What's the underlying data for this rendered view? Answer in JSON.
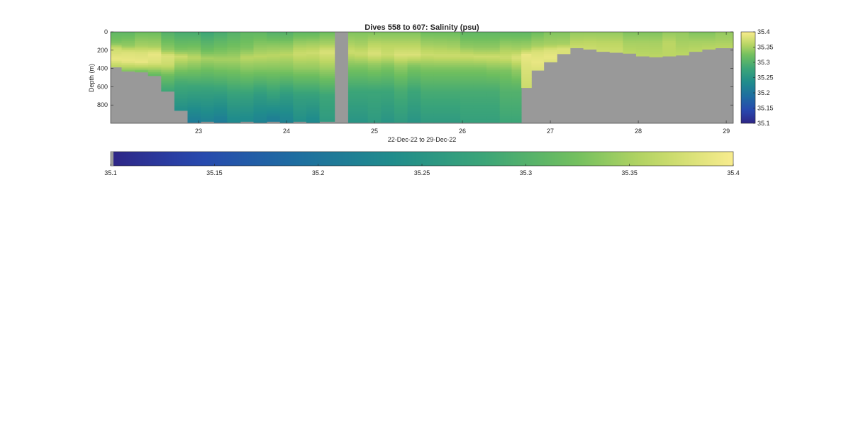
{
  "chart_data": {
    "type": "heatmap",
    "title": "Dives 558 to 607: Salinity (psu)",
    "xlabel": "22-Dec-22 to 29-Dec-22",
    "ylabel": "Depth (m)",
    "xlim": [
      22.0,
      29.08
    ],
    "ylim": [
      0,
      1000
    ],
    "y_reversed": true,
    "xticks": [
      23,
      24,
      25,
      26,
      27,
      28,
      29
    ],
    "yticks": [
      0,
      200,
      400,
      600,
      800
    ],
    "clim": [
      35.1,
      35.4
    ],
    "colormap": "parula",
    "colorbar_ticks": [
      35.1,
      35.15,
      35.2,
      35.25,
      35.3,
      35.35,
      35.4
    ],
    "nodata_color": "#999999",
    "gap_x": [
      24.55,
      24.7
    ],
    "columns": [
      {
        "x": 22.05,
        "bottom": 385,
        "profile": [
          [
            0,
            35.31
          ],
          [
            120,
            35.33
          ],
          [
            180,
            35.37
          ],
          [
            300,
            35.39
          ],
          [
            380,
            35.36
          ]
        ]
      },
      {
        "x": 22.2,
        "bottom": 430,
        "profile": [
          [
            0,
            35.31
          ],
          [
            150,
            35.34
          ],
          [
            220,
            35.38
          ],
          [
            320,
            35.39
          ],
          [
            400,
            35.35
          ],
          [
            430,
            35.33
          ]
        ]
      },
      {
        "x": 22.35,
        "bottom": 440,
        "profile": [
          [
            0,
            35.32
          ],
          [
            150,
            35.35
          ],
          [
            230,
            35.38
          ],
          [
            330,
            35.39
          ],
          [
            400,
            35.35
          ],
          [
            440,
            35.32
          ]
        ]
      },
      {
        "x": 22.5,
        "bottom": 480,
        "profile": [
          [
            0,
            35.32
          ],
          [
            160,
            35.35
          ],
          [
            240,
            35.39
          ],
          [
            340,
            35.38
          ],
          [
            420,
            35.34
          ],
          [
            480,
            35.31
          ]
        ]
      },
      {
        "x": 22.65,
        "bottom": 650,
        "profile": [
          [
            0,
            35.3
          ],
          [
            200,
            35.34
          ],
          [
            260,
            35.38
          ],
          [
            360,
            35.37
          ],
          [
            480,
            35.32
          ],
          [
            650,
            35.28
          ]
        ]
      },
      {
        "x": 22.8,
        "bottom": 860,
        "profile": [
          [
            0,
            35.29
          ],
          [
            200,
            35.33
          ],
          [
            270,
            35.37
          ],
          [
            380,
            35.34
          ],
          [
            550,
            35.29
          ],
          [
            860,
            35.24
          ]
        ]
      },
      {
        "x": 22.95,
        "bottom": 990,
        "profile": [
          [
            0,
            35.29
          ],
          [
            190,
            35.33
          ],
          [
            280,
            35.36
          ],
          [
            400,
            35.33
          ],
          [
            600,
            35.28
          ],
          [
            990,
            35.21
          ]
        ]
      },
      {
        "x": 23.1,
        "bottom": 980,
        "profile": [
          [
            0,
            35.28
          ],
          [
            200,
            35.32
          ],
          [
            290,
            35.35
          ],
          [
            420,
            35.32
          ],
          [
            650,
            35.27
          ],
          [
            980,
            35.22
          ]
        ]
      },
      {
        "x": 23.25,
        "bottom": 990,
        "profile": [
          [
            0,
            35.29
          ],
          [
            220,
            35.33
          ],
          [
            300,
            35.35
          ],
          [
            440,
            35.32
          ],
          [
            700,
            35.26
          ],
          [
            990,
            35.21
          ]
        ]
      },
      {
        "x": 23.4,
        "bottom": 990,
        "profile": [
          [
            0,
            35.3
          ],
          [
            200,
            35.33
          ],
          [
            300,
            35.35
          ],
          [
            450,
            35.32
          ],
          [
            700,
            35.27
          ],
          [
            990,
            35.23
          ]
        ]
      },
      {
        "x": 23.55,
        "bottom": 980,
        "profile": [
          [
            0,
            35.31
          ],
          [
            180,
            35.33
          ],
          [
            280,
            35.36
          ],
          [
            430,
            35.33
          ],
          [
            700,
            35.27
          ],
          [
            980,
            35.23
          ]
        ]
      },
      {
        "x": 23.7,
        "bottom": 990,
        "profile": [
          [
            0,
            35.31
          ],
          [
            170,
            35.34
          ],
          [
            270,
            35.36
          ],
          [
            420,
            35.33
          ],
          [
            700,
            35.26
          ],
          [
            990,
            35.22
          ]
        ]
      },
      {
        "x": 23.85,
        "bottom": 980,
        "profile": [
          [
            0,
            35.3
          ],
          [
            160,
            35.34
          ],
          [
            260,
            35.36
          ],
          [
            420,
            35.33
          ],
          [
            700,
            35.27
          ],
          [
            980,
            35.21
          ]
        ]
      },
      {
        "x": 24.0,
        "bottom": 990,
        "profile": [
          [
            0,
            35.3
          ],
          [
            160,
            35.34
          ],
          [
            250,
            35.36
          ],
          [
            420,
            35.33
          ],
          [
            700,
            35.26
          ],
          [
            990,
            35.22
          ]
        ]
      },
      {
        "x": 24.15,
        "bottom": 980,
        "profile": [
          [
            0,
            35.31
          ],
          [
            150,
            35.35
          ],
          [
            240,
            35.37
          ],
          [
            400,
            35.34
          ],
          [
            700,
            35.27
          ],
          [
            980,
            35.24
          ]
        ]
      },
      {
        "x": 24.3,
        "bottom": 990,
        "profile": [
          [
            0,
            35.31
          ],
          [
            140,
            35.35
          ],
          [
            230,
            35.37
          ],
          [
            400,
            35.34
          ],
          [
            700,
            35.27
          ],
          [
            990,
            35.23
          ]
        ]
      },
      {
        "x": 24.45,
        "bottom": 980,
        "profile": [
          [
            0,
            35.32
          ],
          [
            130,
            35.35
          ],
          [
            220,
            35.38
          ],
          [
            380,
            35.35
          ],
          [
            700,
            35.28
          ],
          [
            980,
            35.26
          ]
        ]
      },
      {
        "x": 24.7,
        "bottom": 990,
        "profile": [
          [
            0,
            35.33
          ],
          [
            120,
            35.35
          ],
          [
            220,
            35.37
          ],
          [
            380,
            35.33
          ],
          [
            650,
            35.28
          ],
          [
            990,
            35.25
          ]
        ]
      },
      {
        "x": 24.85,
        "bottom": 990,
        "profile": [
          [
            0,
            35.33
          ],
          [
            140,
            35.35
          ],
          [
            240,
            35.37
          ],
          [
            380,
            35.33
          ],
          [
            650,
            35.28
          ],
          [
            990,
            35.25
          ]
        ]
      },
      {
        "x": 25.0,
        "bottom": 990,
        "profile": [
          [
            0,
            35.33
          ],
          [
            140,
            35.36
          ],
          [
            240,
            35.38
          ],
          [
            360,
            35.34
          ],
          [
            650,
            35.28
          ],
          [
            990,
            35.26
          ]
        ]
      },
      {
        "x": 25.15,
        "bottom": 990,
        "profile": [
          [
            0,
            35.33
          ],
          [
            150,
            35.36
          ],
          [
            250,
            35.37
          ],
          [
            380,
            35.33
          ],
          [
            650,
            35.28
          ],
          [
            990,
            35.25
          ]
        ]
      },
      {
        "x": 25.3,
        "bottom": 990,
        "profile": [
          [
            0,
            35.33
          ],
          [
            150,
            35.36
          ],
          [
            250,
            35.38
          ],
          [
            380,
            35.34
          ],
          [
            650,
            35.29
          ],
          [
            990,
            35.26
          ]
        ]
      },
      {
        "x": 25.45,
        "bottom": 990,
        "profile": [
          [
            0,
            35.33
          ],
          [
            150,
            35.36
          ],
          [
            250,
            35.38
          ],
          [
            380,
            35.33
          ],
          [
            650,
            35.28
          ],
          [
            990,
            35.25
          ]
        ]
      },
      {
        "x": 25.6,
        "bottom": 990,
        "profile": [
          [
            0,
            35.32
          ],
          [
            150,
            35.35
          ],
          [
            250,
            35.37
          ],
          [
            400,
            35.33
          ],
          [
            650,
            35.29
          ],
          [
            990,
            35.26
          ]
        ]
      },
      {
        "x": 25.75,
        "bottom": 990,
        "profile": [
          [
            0,
            35.32
          ],
          [
            160,
            35.35
          ],
          [
            260,
            35.37
          ],
          [
            400,
            35.33
          ],
          [
            650,
            35.29
          ],
          [
            990,
            35.26
          ]
        ]
      },
      {
        "x": 25.9,
        "bottom": 990,
        "profile": [
          [
            0,
            35.32
          ],
          [
            170,
            35.35
          ],
          [
            260,
            35.37
          ],
          [
            400,
            35.33
          ],
          [
            650,
            35.29
          ],
          [
            990,
            35.26
          ]
        ]
      },
      {
        "x": 26.05,
        "bottom": 990,
        "profile": [
          [
            0,
            35.31
          ],
          [
            170,
            35.34
          ],
          [
            260,
            35.37
          ],
          [
            400,
            35.33
          ],
          [
            650,
            35.29
          ],
          [
            990,
            35.27
          ]
        ]
      },
      {
        "x": 26.2,
        "bottom": 990,
        "profile": [
          [
            0,
            35.31
          ],
          [
            180,
            35.34
          ],
          [
            270,
            35.37
          ],
          [
            400,
            35.33
          ],
          [
            650,
            35.29
          ],
          [
            990,
            35.27
          ]
        ]
      },
      {
        "x": 26.35,
        "bottom": 990,
        "profile": [
          [
            0,
            35.31
          ],
          [
            180,
            35.34
          ],
          [
            270,
            35.37
          ],
          [
            420,
            35.33
          ],
          [
            650,
            35.29
          ],
          [
            990,
            35.27
          ]
        ]
      },
      {
        "x": 26.5,
        "bottom": 990,
        "profile": [
          [
            0,
            35.31
          ],
          [
            180,
            35.35
          ],
          [
            280,
            35.37
          ],
          [
            420,
            35.33
          ],
          [
            650,
            35.3
          ],
          [
            990,
            35.28
          ]
        ]
      },
      {
        "x": 26.62,
        "bottom": 990,
        "profile": [
          [
            0,
            35.31
          ],
          [
            190,
            35.35
          ],
          [
            280,
            35.38
          ],
          [
            420,
            35.34
          ],
          [
            650,
            35.3
          ],
          [
            990,
            35.28
          ]
        ]
      },
      {
        "x": 26.72,
        "bottom": 610,
        "profile": [
          [
            0,
            35.31
          ],
          [
            180,
            35.35
          ],
          [
            250,
            35.39
          ],
          [
            400,
            35.38
          ],
          [
            610,
            35.37
          ]
        ]
      },
      {
        "x": 26.85,
        "bottom": 420,
        "profile": [
          [
            0,
            35.32
          ],
          [
            150,
            35.35
          ],
          [
            220,
            35.38
          ],
          [
            330,
            35.39
          ],
          [
            420,
            35.38
          ]
        ]
      },
      {
        "x": 27.0,
        "bottom": 330,
        "profile": [
          [
            0,
            35.33
          ],
          [
            140,
            35.35
          ],
          [
            200,
            35.38
          ],
          [
            280,
            35.39
          ],
          [
            330,
            35.38
          ]
        ]
      },
      {
        "x": 27.15,
        "bottom": 240,
        "profile": [
          [
            0,
            35.33
          ],
          [
            130,
            35.35
          ],
          [
            190,
            35.38
          ],
          [
            240,
            35.38
          ]
        ]
      },
      {
        "x": 27.3,
        "bottom": 175,
        "profile": [
          [
            0,
            35.34
          ],
          [
            120,
            35.36
          ],
          [
            175,
            35.37
          ]
        ]
      },
      {
        "x": 27.45,
        "bottom": 190,
        "profile": [
          [
            0,
            35.34
          ],
          [
            110,
            35.36
          ],
          [
            190,
            35.37
          ]
        ]
      },
      {
        "x": 27.6,
        "bottom": 215,
        "profile": [
          [
            0,
            35.34
          ],
          [
            120,
            35.36
          ],
          [
            215,
            35.37
          ]
        ]
      },
      {
        "x": 27.75,
        "bottom": 225,
        "profile": [
          [
            0,
            35.34
          ],
          [
            120,
            35.36
          ],
          [
            225,
            35.37
          ]
        ]
      },
      {
        "x": 27.9,
        "bottom": 235,
        "profile": [
          [
            0,
            35.33
          ],
          [
            120,
            35.35
          ],
          [
            235,
            35.36
          ]
        ]
      },
      {
        "x": 28.05,
        "bottom": 265,
        "profile": [
          [
            0,
            35.33
          ],
          [
            120,
            35.35
          ],
          [
            265,
            35.36
          ]
        ]
      },
      {
        "x": 28.2,
        "bottom": 275,
        "profile": [
          [
            0,
            35.33
          ],
          [
            120,
            35.35
          ],
          [
            275,
            35.36
          ]
        ]
      },
      {
        "x": 28.35,
        "bottom": 265,
        "profile": [
          [
            0,
            35.34
          ],
          [
            120,
            35.36
          ],
          [
            265,
            35.36
          ]
        ]
      },
      {
        "x": 28.5,
        "bottom": 255,
        "profile": [
          [
            0,
            35.34
          ],
          [
            120,
            35.35
          ],
          [
            255,
            35.36
          ]
        ]
      },
      {
        "x": 28.65,
        "bottom": 215,
        "profile": [
          [
            0,
            35.33
          ],
          [
            110,
            35.35
          ],
          [
            215,
            35.36
          ]
        ]
      },
      {
        "x": 28.8,
        "bottom": 190,
        "profile": [
          [
            0,
            35.33
          ],
          [
            110,
            35.35
          ],
          [
            190,
            35.36
          ]
        ]
      },
      {
        "x": 28.95,
        "bottom": 175,
        "profile": [
          [
            0,
            35.34
          ],
          [
            100,
            35.35
          ],
          [
            175,
            35.36
          ]
        ]
      }
    ]
  }
}
